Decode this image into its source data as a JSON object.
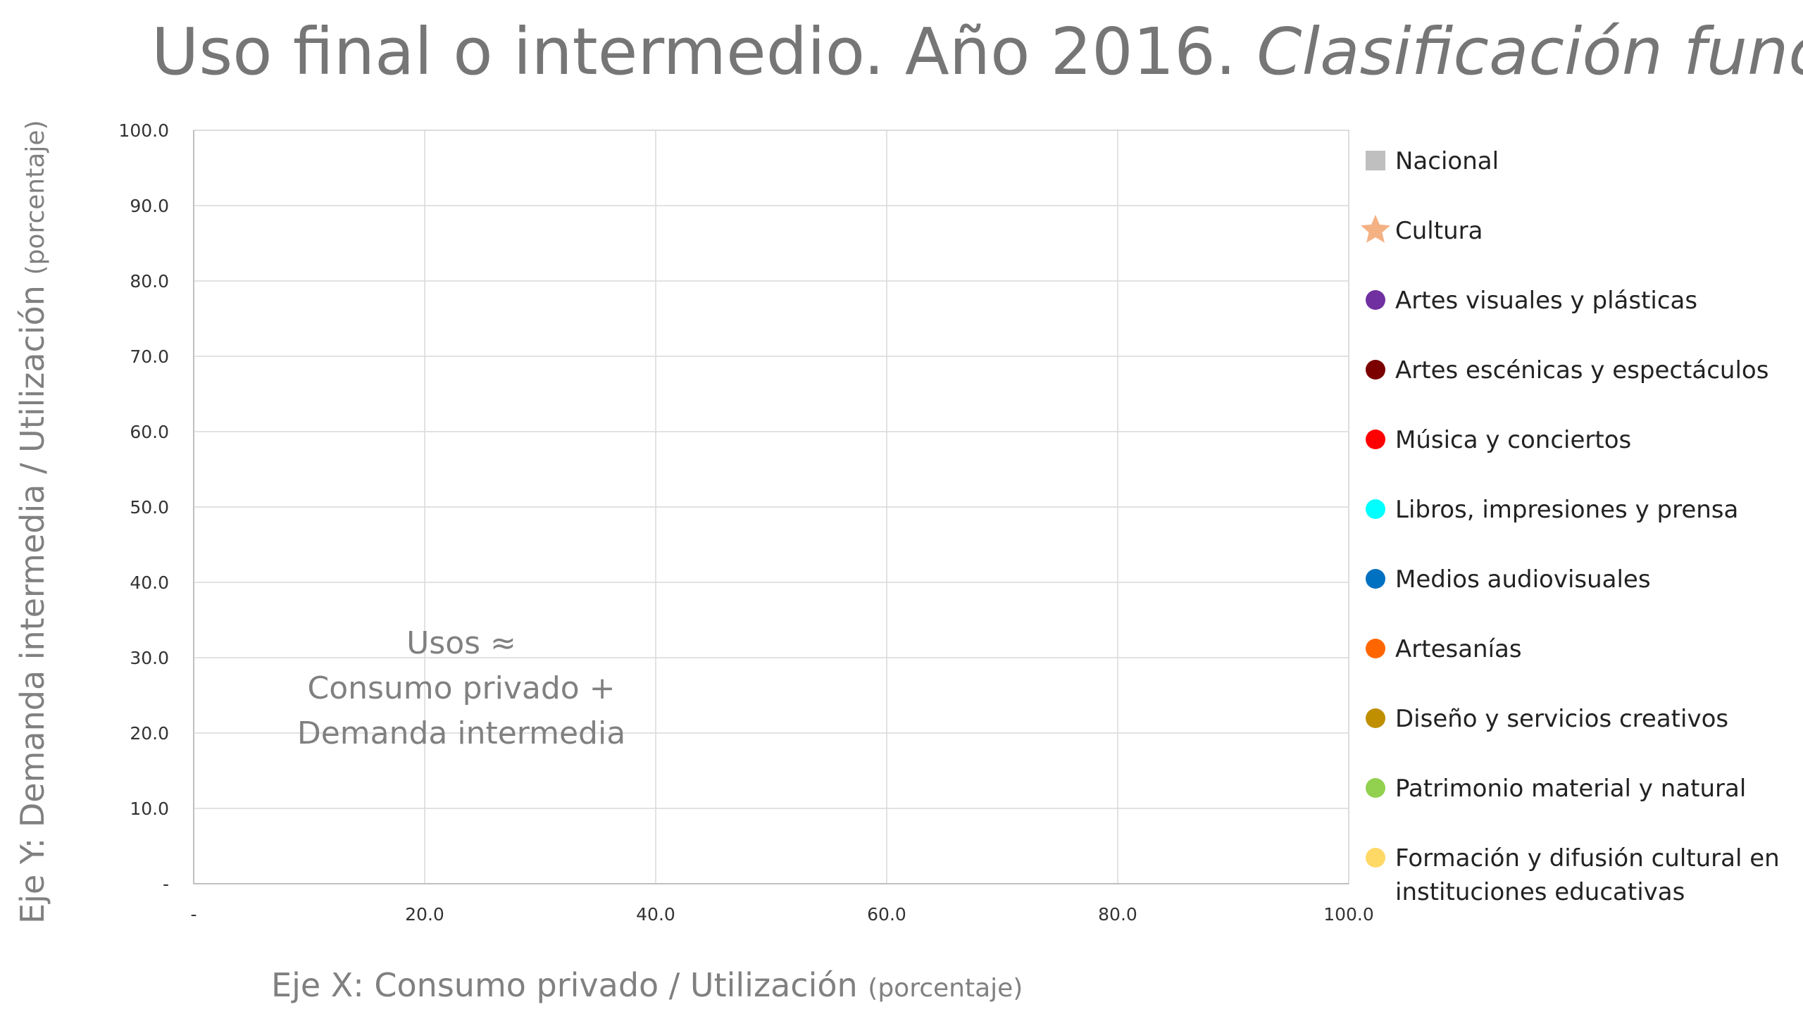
{
  "chart_data": {
    "type": "scatter",
    "title": "Uso final o intermedio. Año 2016.",
    "subtitle": "Clasificación funcional",
    "xlabel": "Eje X: Consumo privado / Utilización",
    "xlabel_unit": "(porcentaje)",
    "ylabel": "Eje Y: Demanda intermedia / Utilización",
    "ylabel_unit": "(porcentaje)",
    "xlim": [
      0,
      100
    ],
    "ylim": [
      0,
      100
    ],
    "x_ticks": [
      "-",
      "20.0",
      "40.0",
      "60.0",
      "80.0",
      "100.0"
    ],
    "y_ticks": [
      "-",
      "10.0",
      "20.0",
      "30.0",
      "40.0",
      "50.0",
      "60.0",
      "70.0",
      "80.0",
      "90.0",
      "100.0"
    ],
    "grid": true,
    "legend_position": "right",
    "annotation_lines": [
      "Usos ≈",
      "Consumo privado +",
      "Demanda intermedia"
    ],
    "series": [
      {
        "name": "Nacional",
        "marker": "square",
        "color": "#BFBFBF",
        "points": []
      },
      {
        "name": "Cultura",
        "marker": "star",
        "color": "#F4B183",
        "points": []
      },
      {
        "name": "Artes visuales y plásticas",
        "marker": "circle",
        "color": "#7030A0",
        "points": []
      },
      {
        "name": "Artes escénicas y espectáculos",
        "marker": "circle",
        "color": "#7B0000",
        "points": []
      },
      {
        "name": "Música y conciertos",
        "marker": "circle",
        "color": "#FF0000",
        "points": []
      },
      {
        "name": "Libros, impresiones y prensa",
        "marker": "circle",
        "color": "#00FFFF",
        "points": []
      },
      {
        "name": "Medios audiovisuales",
        "marker": "circle",
        "color": "#0070C0",
        "points": []
      },
      {
        "name": "Artesanías",
        "marker": "circle",
        "color": "#FF6600",
        "points": []
      },
      {
        "name": "Diseño y servicios creativos",
        "marker": "circle",
        "color": "#BF8F00",
        "points": []
      },
      {
        "name": "Patrimonio material y natural",
        "marker": "circle",
        "color": "#92D050",
        "points": []
      },
      {
        "name": "Formación y difusión cultural en instituciones educativas",
        "label_lines": [
          "Formación y difusión cultural en",
          "instituciones educativas"
        ],
        "marker": "circle",
        "color": "#FFD966",
        "points": []
      }
    ]
  }
}
